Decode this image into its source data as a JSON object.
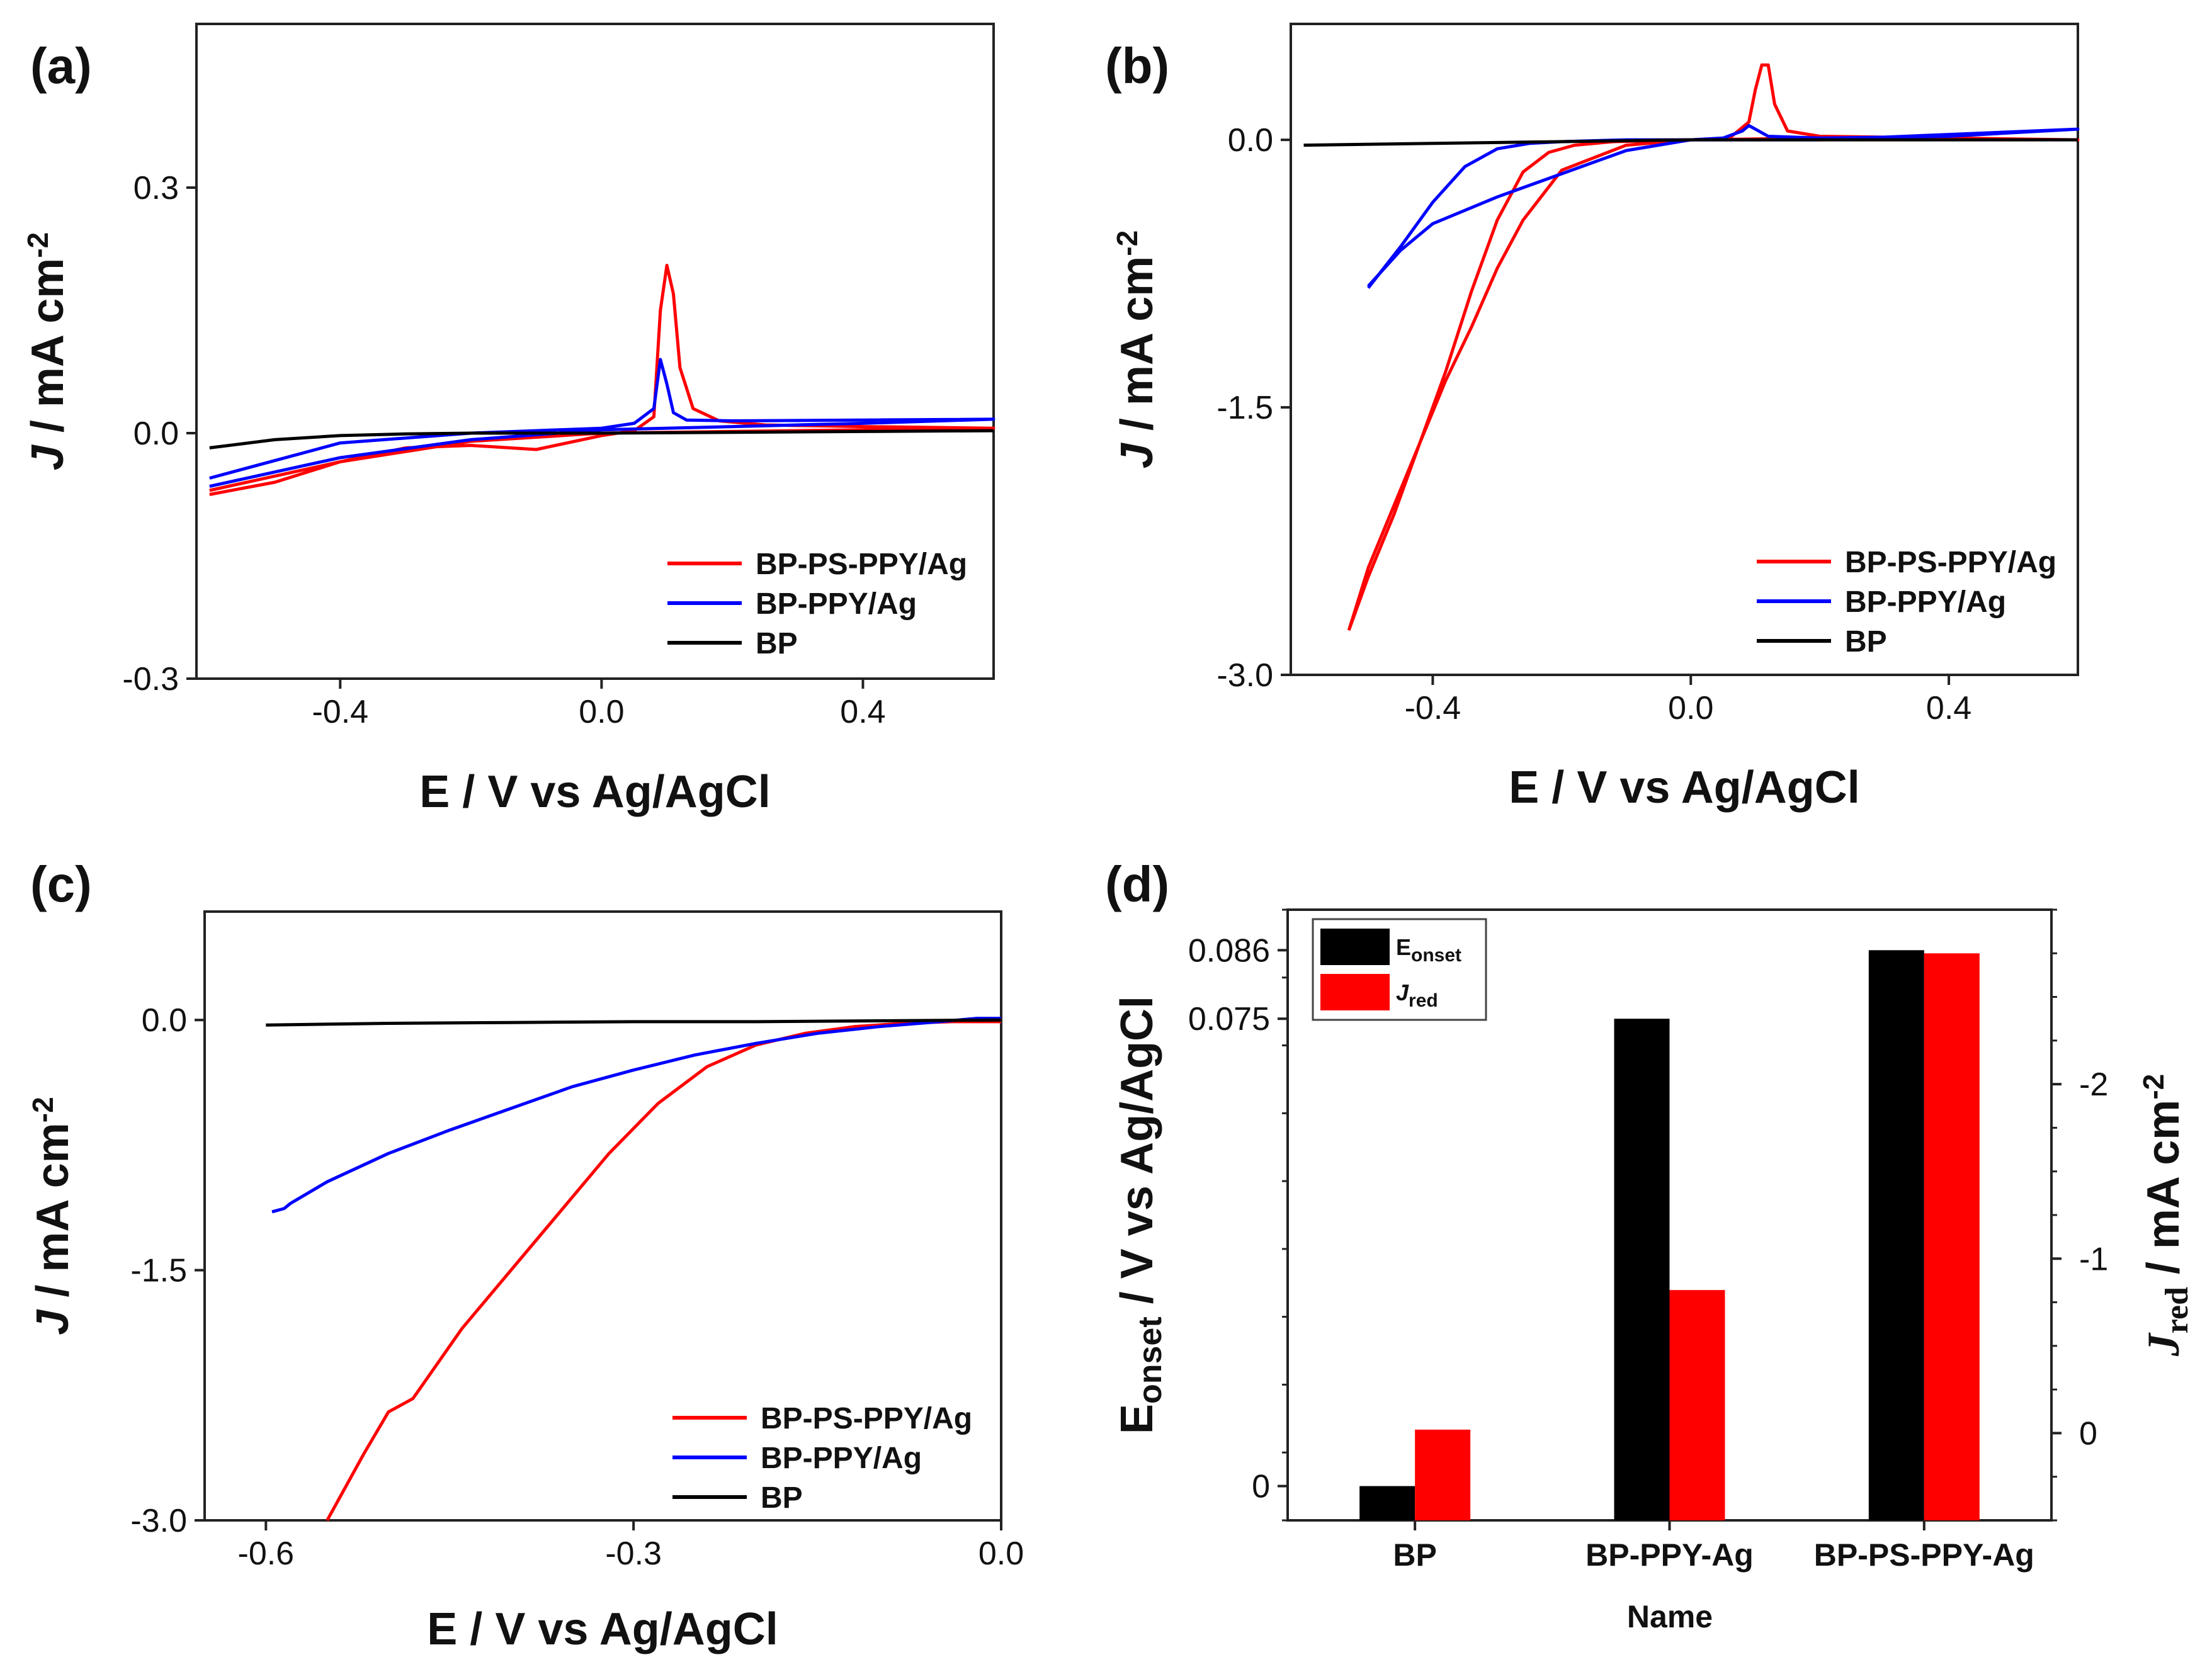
{
  "chart_data": [
    {
      "panel": "(a)",
      "type": "line",
      "xlabel": "E / V vs Ag/AgCl",
      "ylabel_italic": "J",
      "ylabel_rest": " / mA cm",
      "ylabel_sup": "-2",
      "xlim": [
        -0.62,
        0.6
      ],
      "ylim": [
        -0.3,
        0.5
      ],
      "xticks": [
        -0.4,
        0.0,
        0.4
      ],
      "xtick_labels": [
        "-0.4",
        "0.0",
        "0.4"
      ],
      "yticks": [
        -0.3,
        0.0,
        0.3
      ],
      "ytick_labels": [
        "-0.3",
        "0.0",
        "0.3"
      ],
      "legend": [
        "BP-PS-PPY/Ag",
        "BP-PPY/Ag",
        "BP"
      ],
      "series": [
        {
          "name": "BP-PS-PPY/Ag",
          "color": "#ff0000",
          "x": [
            -0.6,
            -0.5,
            -0.4,
            -0.3,
            -0.2,
            -0.1,
            0.0,
            0.05,
            0.08,
            0.09,
            0.1,
            0.11,
            0.12,
            0.14,
            0.18,
            0.25,
            0.4,
            0.6,
            0.4,
            0.2,
            0.0,
            -0.2,
            -0.4,
            -0.6
          ],
          "y": [
            -0.075,
            -0.06,
            -0.035,
            -0.018,
            -0.015,
            -0.02,
            -0.003,
            0.003,
            0.02,
            0.15,
            0.205,
            0.17,
            0.08,
            0.03,
            0.015,
            0.01,
            0.008,
            0.006,
            0.004,
            0.002,
            0.0,
            -0.01,
            -0.035,
            -0.07
          ]
        },
        {
          "name": "BP-PPY/Ag",
          "color": "#0000ff",
          "x": [
            -0.6,
            -0.4,
            -0.2,
            0.0,
            0.05,
            0.08,
            0.09,
            0.1,
            0.11,
            0.13,
            0.2,
            0.4,
            0.6,
            0.4,
            0.2,
            0.0,
            -0.2,
            -0.4,
            -0.6
          ],
          "y": [
            -0.055,
            -0.012,
            0.0,
            0.006,
            0.012,
            0.03,
            0.09,
            0.06,
            0.025,
            0.016,
            0.015,
            0.016,
            0.017,
            0.012,
            0.008,
            0.004,
            -0.008,
            -0.03,
            -0.065
          ]
        },
        {
          "name": "BP",
          "color": "#000000",
          "x": [
            -0.6,
            -0.5,
            -0.4,
            -0.3,
            -0.2,
            0.0,
            0.2,
            0.4,
            0.6
          ],
          "y": [
            -0.018,
            -0.008,
            -0.003,
            -0.001,
            0.0,
            0.0,
            0.001,
            0.002,
            0.003
          ]
        }
      ]
    },
    {
      "panel": "(b)",
      "type": "line",
      "xlabel": "E / V vs Ag/AgCl",
      "ylabel_italic": "J",
      "ylabel_rest": " / mA cm",
      "ylabel_sup": "-2",
      "xlim": [
        -0.62,
        0.6
      ],
      "ylim": [
        -3.0,
        0.65
      ],
      "xticks": [
        -0.4,
        0.0,
        0.4
      ],
      "xtick_labels": [
        "-0.4",
        "0.0",
        "0.4"
      ],
      "yticks": [
        -3.0,
        -1.5,
        0.0
      ],
      "ytick_labels": [
        "-3.0",
        "-1.5",
        "0.0"
      ],
      "legend": [
        "BP-PS-PPY/Ag",
        "BP-PPY/Ag",
        "BP"
      ],
      "series": [
        {
          "name": "BP-PS-PPY/Ag",
          "color": "#ff0000",
          "x": [
            -0.53,
            -0.5,
            -0.46,
            -0.42,
            -0.38,
            -0.34,
            -0.3,
            -0.26,
            -0.22,
            -0.18,
            -0.12,
            -0.06,
            0.0,
            0.06,
            0.09,
            0.1,
            0.11,
            0.12,
            0.13,
            0.15,
            0.2,
            0.4,
            0.6,
            0.4,
            0.2,
            0.0,
            -0.1,
            -0.2,
            -0.26,
            -0.3,
            -0.34,
            -0.38,
            -0.42,
            -0.46,
            -0.5,
            -0.53
          ],
          "y": [
            -2.75,
            -2.45,
            -2.1,
            -1.7,
            -1.3,
            -0.85,
            -0.45,
            -0.18,
            -0.07,
            -0.03,
            -0.01,
            -0.005,
            0.0,
            0.01,
            0.1,
            0.28,
            0.42,
            0.42,
            0.2,
            0.05,
            0.02,
            0.01,
            0.0,
            0.01,
            0.01,
            0.0,
            -0.03,
            -0.17,
            -0.45,
            -0.72,
            -1.05,
            -1.35,
            -1.7,
            -2.05,
            -2.4,
            -2.75
          ]
        },
        {
          "name": "BP-PPY/Ag",
          "color": "#0000ff",
          "x": [
            -0.5,
            -0.45,
            -0.4,
            -0.35,
            -0.3,
            -0.25,
            -0.2,
            -0.1,
            0.0,
            0.05,
            0.08,
            0.09,
            0.1,
            0.12,
            0.2,
            0.4,
            0.6,
            0.4,
            0.2,
            0.0,
            -0.1,
            -0.2,
            -0.3,
            -0.4,
            -0.45,
            -0.5
          ],
          "y": [
            -0.83,
            -0.6,
            -0.35,
            -0.15,
            -0.05,
            -0.02,
            -0.01,
            0.0,
            0.0,
            0.01,
            0.05,
            0.08,
            0.06,
            0.02,
            0.01,
            0.02,
            0.06,
            0.03,
            0.0,
            0.0,
            -0.06,
            -0.19,
            -0.32,
            -0.47,
            -0.62,
            -0.82
          ]
        },
        {
          "name": "BP",
          "color": "#000000",
          "x": [
            -0.6,
            -0.4,
            -0.2,
            0.0,
            0.2,
            0.4,
            0.6
          ],
          "y": [
            -0.03,
            -0.02,
            -0.01,
            0.0,
            0.0,
            0.0,
            0.0
          ]
        }
      ]
    },
    {
      "panel": "(c)",
      "type": "line",
      "xlabel": "E / V vs Ag/AgCl",
      "ylabel_italic": "J",
      "ylabel_rest": " / mA cm",
      "ylabel_sup": "-2",
      "xlim": [
        -0.65,
        0.0
      ],
      "ylim": [
        -3.0,
        0.65
      ],
      "xticks": [
        -0.6,
        -0.3,
        0.0
      ],
      "xtick_labels": [
        "-0.6",
        "-0.3",
        "0.0"
      ],
      "yticks": [
        -3.0,
        -1.5,
        0.0
      ],
      "ytick_labels": [
        "-3.0",
        "-1.5",
        "0.0"
      ],
      "legend": [
        "BP-PS-PPY/Ag",
        "BP-PPY/Ag",
        "BP"
      ],
      "series": [
        {
          "name": "BP-PS-PPY/Ag",
          "color": "#ff0000",
          "x": [
            -0.55,
            -0.52,
            -0.5,
            -0.48,
            -0.44,
            -0.4,
            -0.36,
            -0.32,
            -0.28,
            -0.24,
            -0.2,
            -0.16,
            -0.12,
            -0.08,
            -0.04,
            0.0
          ],
          "y": [
            -3.0,
            -2.6,
            -2.35,
            -2.27,
            -1.85,
            -1.5,
            -1.15,
            -0.8,
            -0.5,
            -0.28,
            -0.15,
            -0.08,
            -0.04,
            -0.02,
            -0.01,
            -0.01
          ]
        },
        {
          "name": "BP-PPY/Ag",
          "color": "#0000ff",
          "x": [
            -0.595,
            -0.585,
            -0.58,
            -0.55,
            -0.5,
            -0.45,
            -0.4,
            -0.35,
            -0.3,
            -0.25,
            -0.2,
            -0.15,
            -0.1,
            -0.05,
            -0.02,
            0.0
          ],
          "y": [
            -1.15,
            -1.13,
            -1.1,
            -0.97,
            -0.8,
            -0.66,
            -0.53,
            -0.4,
            -0.3,
            -0.21,
            -0.14,
            -0.08,
            -0.04,
            -0.01,
            0.01,
            0.01
          ]
        },
        {
          "name": "BP",
          "color": "#000000",
          "x": [
            -0.6,
            -0.5,
            -0.4,
            -0.3,
            -0.2,
            -0.1,
            0.0
          ],
          "y": [
            -0.03,
            -0.02,
            -0.015,
            -0.01,
            -0.01,
            -0.005,
            0.0
          ]
        }
      ]
    },
    {
      "panel": "(d)",
      "type": "bar",
      "xlabel": "Name",
      "ylabel_left_main": "E",
      "ylabel_left_sub": "onset",
      "ylabel_left_rest": " / V vs Ag/AgCl",
      "ylabel_right_main": "J",
      "ylabel_right_sub": "red",
      "ylabel_right_rest": " / mA cm",
      "ylabel_right_sup": "-2",
      "categories": [
        "BP",
        "BP-PPY-Ag",
        "BP-PS-PPY-Ag"
      ],
      "ylim_left": [
        -0.0055,
        0.0925
      ],
      "ylim_right": [
        0.5,
        -3.0
      ],
      "yticks_left": [
        0,
        0.075,
        0.086
      ],
      "ytick_labels_left": [
        "0",
        "0.075",
        "0.086"
      ],
      "yticks_right": [
        0,
        -1,
        -2
      ],
      "ytick_labels_right": [
        "0",
        "-1",
        "-2"
      ],
      "legend": [
        {
          "main": "E",
          "sub": "onset",
          "color": "#000000"
        },
        {
          "main": "J",
          "sub": "red",
          "color": "#ff0000"
        }
      ],
      "series": [
        {
          "name": "Eonset",
          "color": "#000000",
          "axis": "left",
          "values": [
            0.0,
            0.075,
            0.086
          ]
        },
        {
          "name": "Jred",
          "color": "#ff0000",
          "axis": "right",
          "values": [
            -0.02,
            -0.82,
            -2.75
          ]
        }
      ]
    }
  ]
}
